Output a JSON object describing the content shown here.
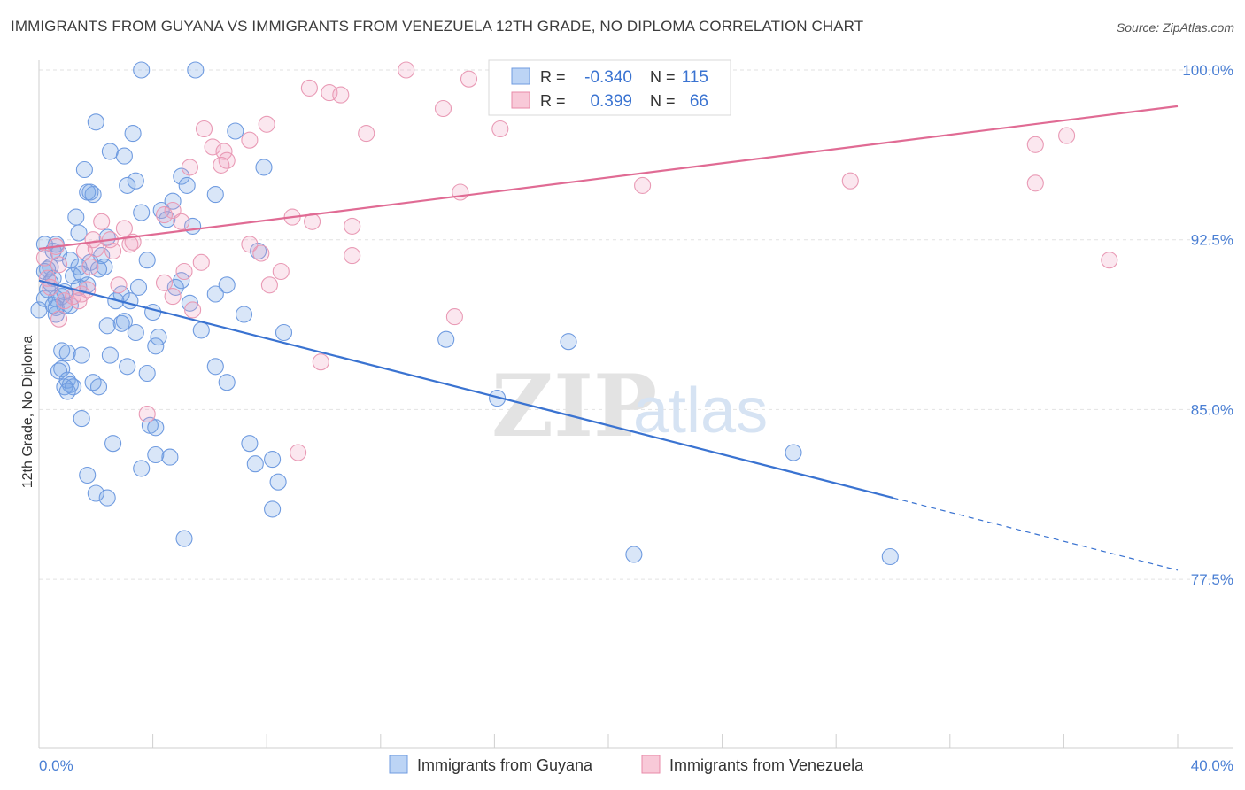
{
  "title": "IMMIGRANTS FROM GUYANA VS IMMIGRANTS FROM VENEZUELA 12TH GRADE, NO DIPLOMA CORRELATION CHART",
  "source": "Source: ZipAtlas.com",
  "watermark": {
    "zip": "ZIP",
    "atlas": "atlas"
  },
  "legend": {
    "r_label": "R =",
    "n_label": "N =",
    "rows": [
      {
        "r": "-0.340",
        "n": "115"
      },
      {
        "r": "0.399",
        "n": "66"
      }
    ]
  },
  "chart_data": {
    "type": "scatter",
    "title": "IMMIGRANTS FROM GUYANA VS IMMIGRANTS FROM VENEZUELA 12TH GRADE, NO DIPLOMA CORRELATION CHART",
    "xlabel": "",
    "ylabel": "12th Grade, No Diploma",
    "xlim": [
      0,
      40
    ],
    "ylim": [
      70,
      100.8
    ],
    "x_tick_labels": [
      "0.0%",
      "40.0%"
    ],
    "y_ticks": [
      77.5,
      85.0,
      92.5,
      100.0
    ],
    "y_tick_labels": [
      "77.5%",
      "85.0%",
      "92.5%",
      "100.0%"
    ],
    "grid": true,
    "colors": {
      "guyana": "#5b8fdc",
      "venezuela": "#e88aa8",
      "guyana_line": "#3a73d1",
      "venezuela_line": "#e06b94"
    },
    "series": [
      {
        "name": "Immigrants from Guyana",
        "r": -0.34,
        "n": 115,
        "trend": {
          "x0": 0,
          "y0": 90.7,
          "x1": 30,
          "y1": 81.1,
          "dash_to_x": 40,
          "dash_to_y": 77.9
        },
        "points": [
          [
            3.6,
            100
          ],
          [
            5.5,
            100
          ],
          [
            2.0,
            97.7
          ],
          [
            3.3,
            97.2
          ],
          [
            6.9,
            97.3
          ],
          [
            2.5,
            96.4
          ],
          [
            3.0,
            96.2
          ],
          [
            1.6,
            95.6
          ],
          [
            7.9,
            95.7
          ],
          [
            5.0,
            95.3
          ],
          [
            3.4,
            95.1
          ],
          [
            3.1,
            94.9
          ],
          [
            5.2,
            94.9
          ],
          [
            1.7,
            94.6
          ],
          [
            1.9,
            94.5
          ],
          [
            1.8,
            94.6
          ],
          [
            6.2,
            94.5
          ],
          [
            4.7,
            94.2
          ],
          [
            4.3,
            93.8
          ],
          [
            3.6,
            93.7
          ],
          [
            1.3,
            93.5
          ],
          [
            4.5,
            93.4
          ],
          [
            5.4,
            93.1
          ],
          [
            1.4,
            92.8
          ],
          [
            2.4,
            92.6
          ],
          [
            0.2,
            92.3
          ],
          [
            0.6,
            92.3
          ],
          [
            0.5,
            92.0
          ],
          [
            7.7,
            92.0
          ],
          [
            2.2,
            91.8
          ],
          [
            1.1,
            91.6
          ],
          [
            3.8,
            91.6
          ],
          [
            0.4,
            91.3
          ],
          [
            1.8,
            91.5
          ],
          [
            1.4,
            91.3
          ],
          [
            0.3,
            91.2
          ],
          [
            2.3,
            91.3
          ],
          [
            1.5,
            91.0
          ],
          [
            0.2,
            91.1
          ],
          [
            5.0,
            90.7
          ],
          [
            4.8,
            90.4
          ],
          [
            6.6,
            90.5
          ],
          [
            0.4,
            90.6
          ],
          [
            1.4,
            90.4
          ],
          [
            1.7,
            90.5
          ],
          [
            3.5,
            90.4
          ],
          [
            0.9,
            90.2
          ],
          [
            2.9,
            90.1
          ],
          [
            6.2,
            90.1
          ],
          [
            0.8,
            90.0
          ],
          [
            0.6,
            89.9
          ],
          [
            2.7,
            89.8
          ],
          [
            3.2,
            89.8
          ],
          [
            5.3,
            89.7
          ],
          [
            0.5,
            89.6
          ],
          [
            0.9,
            89.6
          ],
          [
            0.6,
            89.5
          ],
          [
            1.1,
            89.6
          ],
          [
            4.0,
            89.3
          ],
          [
            7.2,
            89.2
          ],
          [
            0.0,
            89.4
          ],
          [
            0.6,
            89.2
          ],
          [
            2.9,
            88.8
          ],
          [
            3.0,
            88.9
          ],
          [
            2.4,
            88.7
          ],
          [
            3.4,
            88.4
          ],
          [
            5.7,
            88.5
          ],
          [
            8.6,
            88.4
          ],
          [
            4.2,
            88.2
          ],
          [
            14.3,
            88.1
          ],
          [
            18.6,
            88.0
          ],
          [
            4.1,
            87.8
          ],
          [
            0.8,
            87.6
          ],
          [
            1.0,
            87.5
          ],
          [
            2.5,
            87.4
          ],
          [
            1.5,
            87.4
          ],
          [
            3.1,
            86.9
          ],
          [
            6.2,
            86.9
          ],
          [
            0.8,
            86.8
          ],
          [
            0.7,
            86.7
          ],
          [
            3.8,
            86.6
          ],
          [
            1.0,
            86.3
          ],
          [
            6.6,
            86.2
          ],
          [
            1.1,
            86.1
          ],
          [
            0.9,
            86.0
          ],
          [
            1.2,
            86.0
          ],
          [
            2.1,
            86.0
          ],
          [
            1.9,
            86.2
          ],
          [
            1.0,
            85.8
          ],
          [
            16.1,
            85.5
          ],
          [
            1.5,
            84.6
          ],
          [
            3.9,
            84.3
          ],
          [
            4.1,
            84.2
          ],
          [
            2.6,
            83.5
          ],
          [
            7.4,
            83.5
          ],
          [
            4.1,
            83.0
          ],
          [
            4.6,
            82.9
          ],
          [
            26.5,
            83.1
          ],
          [
            8.2,
            82.8
          ],
          [
            7.6,
            82.6
          ],
          [
            3.6,
            82.4
          ],
          [
            1.7,
            82.1
          ],
          [
            8.4,
            81.8
          ],
          [
            2.0,
            81.3
          ],
          [
            2.4,
            81.1
          ],
          [
            8.2,
            80.6
          ],
          [
            5.1,
            79.3
          ],
          [
            20.9,
            78.6
          ],
          [
            29.9,
            78.5
          ],
          [
            0.2,
            89.9
          ],
          [
            0.3,
            90.3
          ],
          [
            1.2,
            90.9
          ],
          [
            2.1,
            91.2
          ],
          [
            0.5,
            90.8
          ],
          [
            0.7,
            91.9
          ]
        ]
      },
      {
        "name": "Immigrants from Venezuela",
        "r": 0.399,
        "n": 66,
        "trend": {
          "x0": 0,
          "y0": 92.1,
          "x1": 40,
          "y1": 98.4
        },
        "points": [
          [
            12.9,
            100
          ],
          [
            22.8,
            100
          ],
          [
            15.1,
            99.6
          ],
          [
            9.5,
            99.2
          ],
          [
            10.2,
            99.0
          ],
          [
            10.6,
            98.9
          ],
          [
            14.2,
            98.3
          ],
          [
            8.0,
            97.6
          ],
          [
            5.8,
            97.4
          ],
          [
            16.2,
            97.4
          ],
          [
            11.5,
            97.2
          ],
          [
            36.1,
            97.1
          ],
          [
            7.4,
            96.9
          ],
          [
            6.1,
            96.6
          ],
          [
            35.0,
            96.7
          ],
          [
            6.5,
            96.4
          ],
          [
            6.6,
            96.0
          ],
          [
            6.4,
            95.8
          ],
          [
            5.3,
            95.7
          ],
          [
            28.5,
            95.1
          ],
          [
            35.0,
            95.0
          ],
          [
            21.2,
            94.9
          ],
          [
            14.8,
            94.6
          ],
          [
            4.7,
            93.8
          ],
          [
            8.9,
            93.5
          ],
          [
            4.4,
            93.6
          ],
          [
            9.6,
            93.3
          ],
          [
            2.2,
            93.3
          ],
          [
            5.0,
            93.3
          ],
          [
            11.0,
            93.1
          ],
          [
            3.0,
            93.0
          ],
          [
            1.9,
            92.5
          ],
          [
            2.5,
            92.5
          ],
          [
            3.2,
            92.3
          ],
          [
            0.6,
            92.2
          ],
          [
            7.4,
            92.3
          ],
          [
            2.0,
            92.1
          ],
          [
            1.6,
            92.0
          ],
          [
            2.6,
            92.0
          ],
          [
            7.8,
            91.9
          ],
          [
            11.0,
            91.8
          ],
          [
            0.2,
            91.7
          ],
          [
            37.6,
            91.6
          ],
          [
            5.7,
            91.5
          ],
          [
            0.7,
            91.4
          ],
          [
            1.8,
            91.3
          ],
          [
            5.1,
            91.1
          ],
          [
            8.5,
            91.1
          ],
          [
            0.3,
            90.8
          ],
          [
            4.4,
            90.6
          ],
          [
            8.1,
            90.5
          ],
          [
            1.7,
            90.3
          ],
          [
            2.8,
            90.5
          ],
          [
            4.7,
            90.0
          ],
          [
            1.5,
            90.1
          ],
          [
            0.9,
            89.8
          ],
          [
            1.4,
            89.8
          ],
          [
            5.4,
            89.4
          ],
          [
            14.6,
            89.1
          ],
          [
            0.7,
            89.0
          ],
          [
            9.9,
            87.1
          ],
          [
            3.8,
            84.8
          ],
          [
            9.1,
            83.1
          ],
          [
            0.4,
            90.4
          ],
          [
            1.2,
            90.0
          ],
          [
            3.3,
            92.4
          ]
        ]
      }
    ]
  },
  "bottom_legend": [
    "Immigrants from Guyana",
    "Immigrants from Venezuela"
  ]
}
